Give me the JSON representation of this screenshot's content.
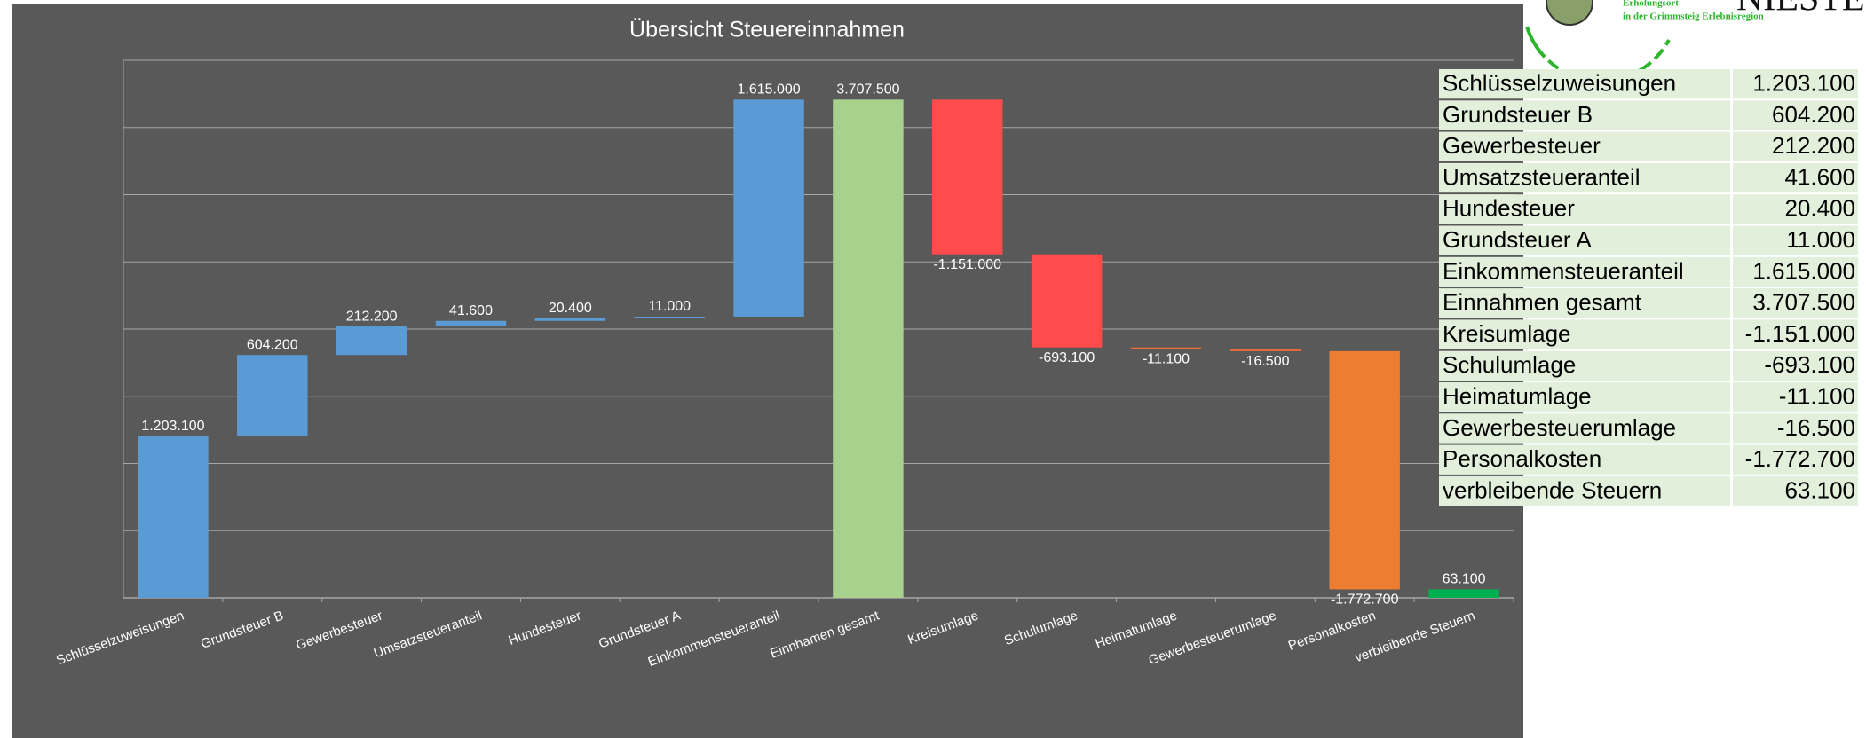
{
  "chart_data": {
    "type": "waterfall",
    "title": "Übersicht Steuereinnahmen",
    "categories": [
      "Schlüsselzuweisungen",
      "Grundsteuer B",
      "Gewerbesteuer",
      "Umsatzsteueranteil",
      "Hundesteuer",
      "Grundsteuer A",
      "Einkommensteueranteil",
      "Einnhamen gesamt",
      "Kreisumlage",
      "Schulumlage",
      "Heimatumlage",
      "Gewerbesteuerumlage",
      "Personalkosten",
      "verbleibende Steuern"
    ],
    "values": [
      1203100,
      604200,
      212200,
      41600,
      20400,
      11000,
      1615000,
      3707500,
      -1151000,
      -693100,
      -11100,
      -16500,
      -1772700,
      63100
    ],
    "value_labels": [
      "1.203.100",
      "604.200",
      "212.200",
      "41.600",
      "20.400",
      "11.000",
      "1.615.000",
      "3.707.500",
      "-1.151.000",
      "-693.100",
      "-11.100",
      "-16.500",
      "-1.772.700",
      "63.100"
    ],
    "colors": [
      "#5b9bd5",
      "#5b9bd5",
      "#5b9bd5",
      "#5b9bd5",
      "#5b9bd5",
      "#5b9bd5",
      "#5b9bd5",
      "#a9d18e",
      "#ff4b4b",
      "#ff4b4b",
      "#ed6a3a",
      "#ed6a3a",
      "#ed7d31",
      "#00b050"
    ],
    "total_indices": [
      7,
      13
    ],
    "ylim": [
      0,
      4000000
    ],
    "yticks": [
      0,
      500000,
      1000000,
      1500000,
      2000000,
      2500000,
      3000000,
      3500000,
      4000000
    ],
    "grid": true
  },
  "table": {
    "rows": [
      [
        "Schlüsselzuweisungen",
        "1.203.100"
      ],
      [
        "Grundsteuer B",
        "604.200"
      ],
      [
        "Gewerbesteuer",
        "212.200"
      ],
      [
        "Umsatzsteueranteil",
        "41.600"
      ],
      [
        "Hundesteuer",
        "20.400"
      ],
      [
        "Grundsteuer A",
        "11.000"
      ],
      [
        "Einkommensteueranteil",
        "1.615.000"
      ],
      [
        "Einnahmen gesamt",
        "3.707.500"
      ],
      [
        "Kreisumlage",
        "-1.151.000"
      ],
      [
        "Schulumlage",
        "-693.100"
      ],
      [
        "Heimatumlage",
        "-11.100"
      ],
      [
        "Gewerbesteuerumlage",
        "-16.500"
      ],
      [
        "Personalkosten",
        "-1.772.700"
      ],
      [
        "verbleibende Steuern",
        "63.100"
      ]
    ]
  },
  "logo": {
    "name": "NIESTE",
    "tagline": [
      "Erholungsort",
      "in der Grimmsteig Erlebnisregion"
    ]
  }
}
